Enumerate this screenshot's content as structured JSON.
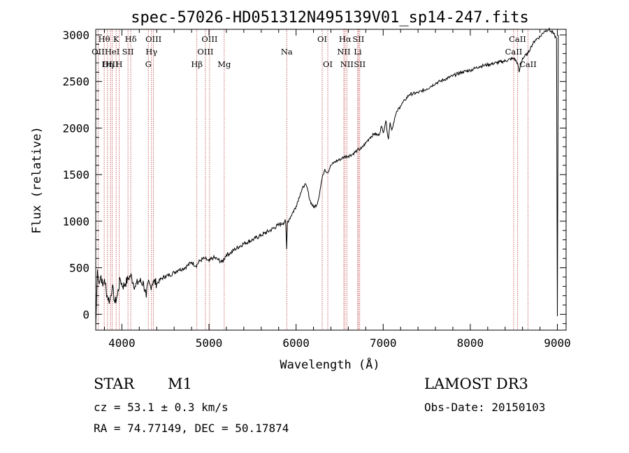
{
  "chart_data": {
    "type": "line",
    "title": "spec-57026-HD051312N495139V01_sp14-247.fits",
    "xlabel": "Wavelength (Å)",
    "ylabel": "Flux (relative)",
    "xlim": [
      3700,
      9100
    ],
    "ylim": [
      -170,
      3060
    ],
    "xticks": [
      4000,
      5000,
      6000,
      7000,
      8000,
      9000
    ],
    "xtick_labels": [
      "4000",
      "5000",
      "6000",
      "7000",
      "8000",
      "9000"
    ],
    "yticks": [
      0,
      500,
      1000,
      1500,
      2000,
      2500,
      3000
    ],
    "ytick_labels": [
      "0",
      "500",
      "1000",
      "1500",
      "2000",
      "2500",
      "3000"
    ],
    "series": [
      {
        "name": "spectrum",
        "x": [
          3700,
          3720,
          3740,
          3760,
          3780,
          3800,
          3830,
          3860,
          3890,
          3920,
          3950,
          3980,
          4010,
          4040,
          4070,
          4100,
          4150,
          4200,
          4250,
          4280,
          4300,
          4330,
          4360,
          4400,
          4450,
          4500,
          4550,
          4600,
          4650,
          4700,
          4750,
          4800,
          4850,
          4900,
          4950,
          5000,
          5050,
          5100,
          5150,
          5200,
          5250,
          5300,
          5400,
          5500,
          5600,
          5700,
          5800,
          5850,
          5880,
          5892,
          5900,
          5920,
          5960,
          6000,
          6050,
          6100,
          6130,
          6160,
          6200,
          6240,
          6270,
          6290,
          6310,
          6330,
          6360,
          6400,
          6450,
          6500,
          6550,
          6600,
          6650,
          6700,
          6750,
          6800,
          6850,
          6900,
          6950,
          6980,
          7000,
          7030,
          7060,
          7080,
          7100,
          7130,
          7160,
          7200,
          7250,
          7300,
          7400,
          7500,
          7550,
          7600,
          7650,
          7700,
          7800,
          7900,
          8000,
          8050,
          8100,
          8150,
          8200,
          8300,
          8400,
          8500,
          8542,
          8560,
          8600,
          8662,
          8700,
          8750,
          8800,
          8850,
          8900,
          8950,
          8990,
          9000,
          9010
        ],
        "values": [
          -120,
          480,
          330,
          420,
          300,
          380,
          200,
          140,
          300,
          120,
          210,
          380,
          300,
          330,
          380,
          420,
          300,
          360,
          330,
          180,
          340,
          300,
          360,
          330,
          380,
          410,
          420,
          450,
          480,
          490,
          520,
          560,
          520,
          580,
          600,
          570,
          610,
          590,
          560,
          640,
          660,
          700,
          760,
          800,
          850,
          900,
          960,
          980,
          1000,
          700,
          990,
          1020,
          1090,
          1160,
          1300,
          1400,
          1350,
          1220,
          1150,
          1180,
          1300,
          1420,
          1500,
          1560,
          1520,
          1600,
          1640,
          1660,
          1690,
          1700,
          1720,
          1760,
          1780,
          1840,
          1900,
          1940,
          1920,
          2020,
          1950,
          2080,
          1880,
          2060,
          1980,
          2100,
          2180,
          2240,
          2300,
          2360,
          2380,
          2420,
          2450,
          2480,
          2500,
          2520,
          2560,
          2600,
          2620,
          2640,
          2660,
          2670,
          2680,
          2700,
          2720,
          2750,
          2700,
          2600,
          2750,
          2800,
          2880,
          2950,
          2980,
          3040,
          3060,
          3020,
          2960,
          -20,
          3000
        ]
      }
    ],
    "lines": [
      {
        "label": "Hθ",
        "x": 3797,
        "row": 0
      },
      {
        "label": "OII",
        "x": 3727,
        "row": 1
      },
      {
        "label": "OIII",
        "x": 3869,
        "row": 2
      },
      {
        "label": "K",
        "x": 3934,
        "row": 0
      },
      {
        "label": "HeI",
        "x": 3889,
        "row": 1
      },
      {
        "label": "Hη",
        "x": 3835,
        "row": 2
      },
      {
        "label": "Hδ",
        "x": 4102,
        "row": 0
      },
      {
        "label": "SII",
        "x": 4070,
        "row": 1
      },
      {
        "label": "H",
        "x": 3968,
        "row": 2
      },
      {
        "label": "OIII",
        "x": 4363,
        "row": 0
      },
      {
        "label": "Hγ",
        "x": 4340,
        "row": 1
      },
      {
        "label": "G",
        "x": 4304,
        "row": 2
      },
      {
        "label": "OIII",
        "x": 5007,
        "row": 0
      },
      {
        "label": "OIII",
        "x": 4959,
        "row": 1
      },
      {
        "label": "Hβ",
        "x": 4861,
        "row": 2
      },
      {
        "label": "Mg",
        "x": 5175,
        "row": 2
      },
      {
        "label": "Na",
        "x": 5893,
        "row": 1
      },
      {
        "label": "OI",
        "x": 6300,
        "row": 0
      },
      {
        "label": "OI",
        "x": 6364,
        "row": 2
      },
      {
        "label": "Hα",
        "x": 6563,
        "row": 0
      },
      {
        "label": "SII",
        "x": 6716,
        "row": 0
      },
      {
        "label": "NII",
        "x": 6548,
        "row": 1
      },
      {
        "label": "Li",
        "x": 6708,
        "row": 1
      },
      {
        "label": "NII",
        "x": 6583,
        "row": 2
      },
      {
        "label": "SII",
        "x": 6731,
        "row": 2
      },
      {
        "label": "CaII",
        "x": 8542,
        "row": 0
      },
      {
        "label": "CaII",
        "x": 8498,
        "row": 1
      },
      {
        "label": "CaII",
        "x": 8662,
        "row": 2
      }
    ]
  },
  "info": {
    "object_class": "STAR",
    "subclass": "M1",
    "survey": "LAMOST DR3",
    "cz": "cz = 53.1 ± 0.3 km/s",
    "obs_date": "Obs-Date: 20150103",
    "coords": "RA =  74.77149, DEC =  50.17874"
  }
}
